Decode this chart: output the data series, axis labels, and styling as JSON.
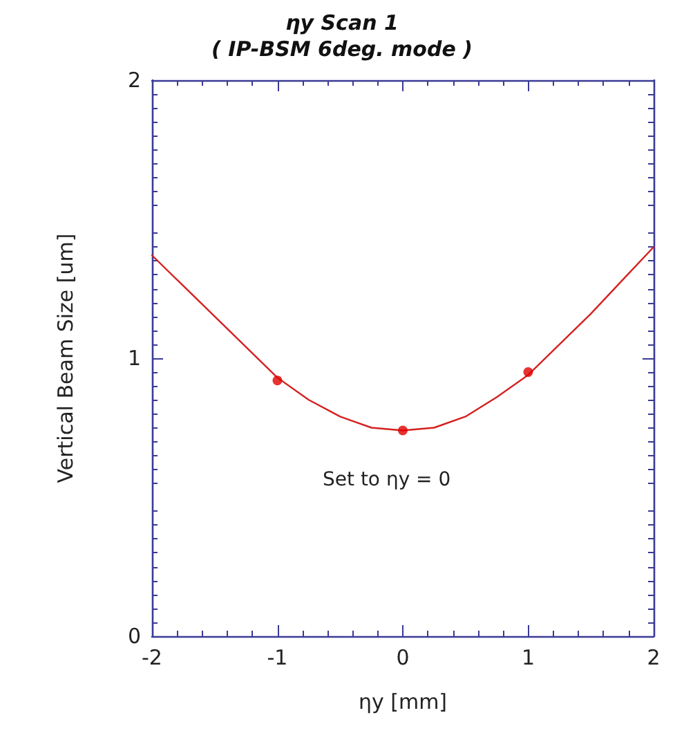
{
  "chart_data": {
    "type": "scatter",
    "title": "ηy Scan 1",
    "subtitle": "( IP-BSM 6deg. mode )",
    "xlabel": "ηy [mm]",
    "ylabel": "Vertical Beam Size [um]",
    "annotations": [
      "Set to ηy = 0"
    ],
    "xlim": [
      -2,
      2
    ],
    "xticks": [
      -2,
      -1,
      0,
      1,
      2
    ],
    "ylim": [
      0,
      2
    ],
    "yticks": [
      0,
      1,
      2
    ],
    "grid": false,
    "series": [
      {
        "type": "line",
        "marker": "none",
        "color": "#d42020",
        "x": [
          -2,
          -1.75,
          -1.5,
          -1.25,
          -1,
          -0.75,
          -0.5,
          -0.25,
          0,
          0.25,
          0.5,
          0.75,
          1,
          1.25,
          1.5,
          1.75,
          2
        ],
        "values": [
          1.37,
          1.26,
          1.15,
          1.04,
          0.93,
          0.85,
          0.79,
          0.75,
          0.74,
          0.75,
          0.79,
          0.86,
          0.94,
          1.05,
          1.16,
          1.28,
          1.4
        ]
      },
      {
        "marker": "circle",
        "color": "#e00000",
        "x": [
          -1,
          0,
          1
        ],
        "values": [
          0.92,
          0.74,
          0.95
        ]
      }
    ]
  }
}
